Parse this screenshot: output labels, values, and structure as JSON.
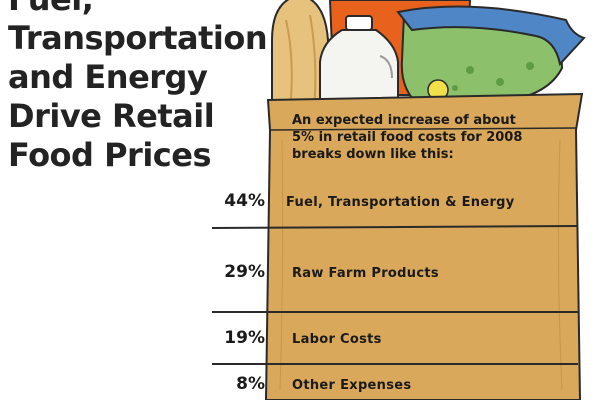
{
  "title_lines": [
    "Fuel,",
    "Transportation",
    "and Energy",
    "Drive Retail",
    "Food Prices"
  ],
  "intro_lines": [
    "An expected increase of about",
    "5% in retail food costs for 2008",
    "breaks down like this:"
  ],
  "colors": {
    "bag": "#d9a85a",
    "bag_dark": "#b98a3e",
    "bread": "#e6c27c",
    "orange_box": "#e8621e",
    "lettuce": "#8cc06a",
    "bag_wrap": "#4f86c6",
    "milk": "#f4f4f0",
    "text": "#1a1a1a",
    "rule": "#2a2a2a"
  },
  "icons": [
    "bread-icon",
    "milk-jug-icon",
    "cereal-box-icon",
    "lettuce-bag-icon",
    "grocery-bag-icon"
  ],
  "chart_data": {
    "type": "table",
    "title": "Fuel, Transportation and Energy Drive Retail Food Prices",
    "categories": [
      "Fuel, Transportation & Energy",
      "Raw Farm Products",
      "Labor Costs",
      "Other Expenses"
    ],
    "values": [
      44,
      29,
      19,
      8
    ],
    "value_labels": [
      "44%",
      "29%",
      "19%",
      "8%"
    ],
    "unit": "%"
  }
}
